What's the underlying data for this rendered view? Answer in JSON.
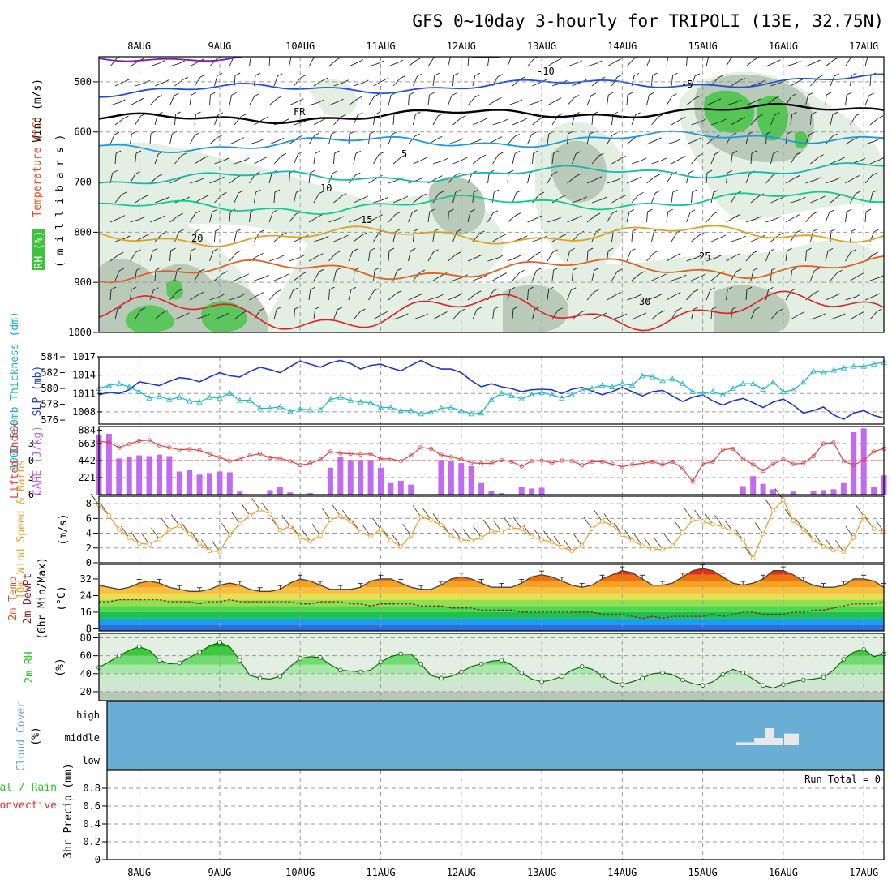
{
  "title": "GFS 0~10day 3-hourly for TRIPOLI (13E, 32.75N)",
  "dates": [
    "8AUG",
    "9AUG",
    "10AUG",
    "11AUG",
    "12AUG",
    "13AUG",
    "14AUG",
    "15AUG",
    "16AUG",
    "17AUG"
  ],
  "colors": {
    "rh_green": "#3cc43c",
    "light_green": "#e3efe3",
    "grey_fill": "#b9cab9",
    "purple": "#7a1fb0",
    "blue": "#2050d8",
    "sky": "#1f9ad8",
    "teal": "#14b8b0",
    "sea": "#12c88a",
    "orange": "#e0a020",
    "red_orange": "#e06020",
    "red": "#e02020",
    "slp_blue": "#2038c8",
    "thick_cyan": "#28b8c8",
    "cape_violet": "#c06cf0",
    "li_red": "#e04040",
    "wind_orange": "#f0a030",
    "cloud_blue": "#6aaed6",
    "rh2m_green": "#1fc41f"
  },
  "panels": {
    "profile": {
      "ylabel_rh": "RH (%)",
      "ylabel_temp": "Temperature (°C)",
      "ylabel_wind": "Wind (m/s)",
      "ylabel_mb": "( m i l l i b a r s )",
      "yticks": [
        "500",
        "600",
        "700",
        "800",
        "900",
        "1000"
      ],
      "labels": [
        "-10",
        "-5",
        "FR",
        "5",
        "10",
        "15",
        "20",
        "25",
        "30"
      ]
    },
    "slp": {
      "ylabel_thick": "1000-500mb Thickness (dm)",
      "ylabel_slp": "SLP (mb)",
      "thick_ticks": [
        "584",
        "582",
        "580",
        "578",
        "576"
      ],
      "slp_ticks": [
        "1017",
        "1014",
        "1011",
        "1008",
        "884"
      ]
    },
    "cape": {
      "ylabel_li": "Lifted Index",
      "ylabel_cape": "CAPE (J/kg)",
      "li_ticks": [
        "-3",
        "0",
        "3",
        "6"
      ],
      "cape_ticks": [
        "663",
        "442",
        "221"
      ]
    },
    "wind10": {
      "ylabel": "10m Wind Speed & Barbs",
      "unit": "(m/s)",
      "ticks": [
        "8",
        "6",
        "4",
        "2",
        "0"
      ]
    },
    "temp2m": {
      "ylabel1": "2m Temp",
      "ylabel2": "2m DewPt",
      "ylabel3": "(6hr Min/Max)",
      "unit": "(°C)",
      "ticks": [
        "32",
        "24",
        "16",
        "8"
      ]
    },
    "rh2m": {
      "ylabel": "2m RH",
      "unit": "(%)",
      "ticks": [
        "80",
        "60",
        "40",
        "20"
      ]
    },
    "cloud": {
      "ylabel": "Cloud Cover",
      "unit": "(%)",
      "levels": [
        "high",
        "middle",
        "low"
      ]
    },
    "precip": {
      "ylabel1": "Total / Rain",
      "ylabel2": "Convective",
      "ylabel3": "3hr Precip (mm)",
      "ticks": [
        "0.8",
        "0.6",
        "0.4",
        "0.2",
        "0"
      ],
      "run_total": "Run Total = 0"
    }
  },
  "chart_data": [
    {
      "type": "line",
      "name_panel": "SLP & 1000-500mb thickness",
      "x_unit": "days from 7AUG 12Z (3-hourly)",
      "x": [
        0.0,
        0.125,
        0.25,
        0.375,
        0.5,
        0.625,
        0.75,
        0.875,
        1.0,
        1.125,
        1.25,
        1.375,
        1.5,
        1.625,
        1.75,
        1.875,
        2.0,
        2.125,
        2.25,
        2.375,
        2.5,
        2.625,
        2.75,
        2.875,
        3.0,
        3.125,
        3.25,
        3.375,
        3.5,
        3.625,
        3.75,
        3.875,
        4.0,
        4.125,
        4.25,
        4.375,
        4.5,
        4.625,
        4.75,
        4.875,
        5.0,
        5.125,
        5.25,
        5.375,
        5.5,
        5.625,
        5.75,
        5.875,
        6.0,
        6.125,
        6.25,
        6.375,
        6.5,
        6.625,
        6.75,
        6.875,
        7.0,
        7.125,
        7.25,
        7.375,
        7.5,
        7.625,
        7.75,
        7.875,
        8.0,
        8.125,
        8.25,
        8.375,
        8.5,
        8.625,
        8.75,
        8.875,
        9.0,
        9.125,
        9.25,
        9.375,
        9.5,
        9.625,
        9.75
      ],
      "series": [
        {
          "name": "SLP (mb)",
          "values": [
            1010.8,
            1011.2,
            1011.0,
            1011.6,
            1012.9,
            1012.6,
            1012.3,
            1013.0,
            1013.6,
            1013.4,
            1012.9,
            1013.7,
            1014.4,
            1013.9,
            1013.7,
            1014.6,
            1015.3,
            1014.9,
            1014.4,
            1015.4,
            1016.3,
            1015.8,
            1015.3,
            1016.0,
            1016.4,
            1015.9,
            1015.0,
            1015.6,
            1015.8,
            1015.2,
            1014.7,
            1015.6,
            1016.4,
            1015.6,
            1015.0,
            1015.0,
            1014.4,
            1013.1,
            1012.1,
            1012.6,
            1012.1,
            1011.8,
            1011.3,
            1011.6,
            1011.7,
            1011.6,
            1011.0,
            1011.7,
            1012.0,
            1011.4,
            1010.8,
            1011.3,
            1012.0,
            1011.3,
            1010.6,
            1011.3,
            1011.5,
            1010.6,
            1009.7,
            1010.4,
            1010.8,
            1009.8,
            1009.1,
            1009.8,
            1010.2,
            1009.5,
            1008.7,
            1009.6,
            1010.1,
            1009.1,
            1007.8,
            1008.2,
            1008.8,
            1007.5,
            1006.8,
            1007.8,
            1008.2,
            1007.4,
            1007.0
          ]
        },
        {
          "name": "1000-500mb Thickness (dm)",
          "values": [
            580.0,
            580.4,
            580.6,
            580.2,
            579.6,
            578.8,
            579.0,
            578.6,
            578.9,
            578.4,
            578.3,
            578.9,
            578.8,
            579.4,
            578.5,
            578.5,
            577.5,
            577.5,
            577.7,
            577.1,
            577.4,
            577.3,
            577.3,
            578.6,
            578.9,
            578.5,
            578.3,
            578.2,
            577.6,
            577.6,
            577.2,
            577.2,
            576.8,
            577.0,
            577.5,
            577.6,
            577.2,
            576.8,
            576.9,
            578.6,
            579.4,
            579.1,
            578.7,
            579.2,
            579.5,
            579.2,
            578.8,
            579.2,
            579.8,
            580.0,
            580.4,
            580.2,
            580.6,
            580.4,
            581.6,
            581.5,
            581.0,
            581.2,
            580.6,
            579.6,
            579.4,
            579.6,
            579.2,
            580.0,
            580.6,
            580.6,
            579.9,
            580.8,
            579.6,
            579.8,
            580.8,
            582.2,
            582.0,
            582.3,
            582.6,
            582.8,
            582.8,
            583.1,
            583.3
          ]
        }
      ]
    },
    {
      "type": "bar",
      "name_panel": "CAPE & Lifted Index",
      "x_unit": "days from 7AUG 12Z (3-hourly)",
      "series": [
        {
          "name": "CAPE (J/kg)",
          "values": [
            780,
            790,
            470,
            490,
            510,
            500,
            520,
            500,
            300,
            320,
            260,
            280,
            300,
            290,
            40,
            0,
            0,
            60,
            100,
            30,
            0,
            20,
            0,
            350,
            490,
            450,
            450,
            450,
            350,
            150,
            180,
            130,
            0,
            0,
            450,
            430,
            410,
            370,
            150,
            50,
            20,
            0,
            100,
            80,
            90,
            0,
            0,
            0,
            0,
            0,
            0,
            0,
            0,
            0,
            0,
            0,
            0,
            0,
            0,
            0,
            0,
            0,
            0,
            0,
            110,
            240,
            140,
            70,
            0,
            40,
            0,
            50,
            60,
            70,
            150,
            810,
            860,
            100,
            250
          ]
        },
        {
          "name": "Lifted Index",
          "values": [
            -3.4,
            -3.2,
            -2.3,
            -2.9,
            -3.5,
            -3.6,
            -2.7,
            -2.3,
            -1.9,
            -2.0,
            -1.8,
            -1.1,
            -0.6,
            0.1,
            -0.3,
            -0.9,
            -1.2,
            -0.5,
            -0.4,
            0.1,
            0.8,
            0.5,
            -0.2,
            -1.6,
            -1.3,
            -1.2,
            -1.1,
            -1.2,
            -0.3,
            -0.3,
            0.1,
            -0.9,
            -2.3,
            -2.1,
            -1.0,
            -0.7,
            -0.2,
            0.4,
            0.5,
            0.5,
            -0.1,
            0.2,
            1.0,
            0.1,
            0.0,
            0.4,
            0.0,
            0.1,
            0.8,
            0.2,
            0.2,
            0.6,
            1.1,
            0.7,
            0.5,
            0.2,
            0.7,
            0.2,
            1.4,
            3.7,
            0.6,
            0.2,
            -1.9,
            -2.1,
            -0.3,
            0.7,
            1.8,
            0.6,
            -0.2,
            0.6,
            0.5,
            -0.8,
            -3.0,
            -3.2,
            0.1,
            0.8,
            -0.1,
            -1.6,
            -2.1
          ]
        }
      ],
      "ylim_cape": [
        0,
        884
      ],
      "ylim_li": [
        6,
        -6
      ]
    },
    {
      "type": "line",
      "name_panel": "10m Wind Speed",
      "ylabel": "(m/s)",
      "ylim": [
        0,
        9
      ],
      "values": [
        7.8,
        6.4,
        4.5,
        3.4,
        2.6,
        2.5,
        3.2,
        4.5,
        5.0,
        3.9,
        2.6,
        1.6,
        1.5,
        3.8,
        5.3,
        6.4,
        7.2,
        6.6,
        4.4,
        4.9,
        3.4,
        2.9,
        3.7,
        5.8,
        6.3,
        5.6,
        4.1,
        3.6,
        4.5,
        3.0,
        2.2,
        3.7,
        6.2,
        5.8,
        5.1,
        3.6,
        3.1,
        3.0,
        3.4,
        4.3,
        4.2,
        4.7,
        4.6,
        3.5,
        3.1,
        2.8,
        2.1,
        1.6,
        2.3,
        4.6,
        5.6,
        5.1,
        3.8,
        3.0,
        2.3,
        1.8,
        1.8,
        2.3,
        4.1,
        5.8,
        5.6,
        5.2,
        4.9,
        4.2,
        3.1,
        0.6,
        3.9,
        7.1,
        8.5,
        5.7,
        4.5,
        3.1,
        2.2,
        1.7,
        1.5,
        3.4,
        6.3,
        4.6,
        4.2
      ]
    },
    {
      "type": "area",
      "name_panel": "2m Temp / DewPt",
      "ylabel": "(°C)",
      "ylim": [
        7,
        39
      ],
      "series": [
        {
          "name": "2m Temp",
          "values": [
            29,
            28,
            27,
            28,
            30,
            31,
            30,
            28,
            27,
            26,
            26,
            27,
            29,
            30,
            29,
            27,
            26,
            26,
            27,
            30,
            32,
            31,
            29,
            27,
            27,
            27,
            28,
            31,
            32,
            32,
            30,
            28,
            27,
            27,
            29,
            32,
            33,
            32,
            30,
            28,
            28,
            28,
            30,
            33,
            34,
            33,
            31,
            29,
            28,
            29,
            32,
            34,
            36,
            35,
            32,
            29,
            29,
            30,
            33,
            36,
            37,
            36,
            33,
            30,
            29,
            30,
            32,
            36,
            36,
            34,
            31,
            29,
            28,
            28,
            29,
            32,
            32,
            31,
            28
          ]
        },
        {
          "name": "2m DewPt",
          "values": [
            21,
            21,
            22,
            22,
            22,
            22,
            22,
            21,
            21,
            21,
            20,
            21,
            21,
            22,
            21,
            21,
            21,
            21,
            21,
            21,
            20,
            20,
            21,
            21,
            21,
            20,
            20,
            19,
            20,
            20,
            20,
            20,
            19,
            19,
            19,
            18,
            18,
            18,
            17,
            17,
            17,
            17,
            16,
            16,
            16,
            16,
            16,
            16,
            16,
            16,
            15,
            15,
            15,
            14,
            13,
            14,
            13,
            14,
            14,
            14,
            14,
            15,
            14,
            15,
            16,
            16,
            15,
            15,
            15,
            16,
            16,
            17,
            17,
            18,
            19,
            20,
            20,
            20,
            21
          ]
        }
      ]
    },
    {
      "type": "area",
      "name_panel": "2m RH",
      "ylabel": "(%)",
      "ylim": [
        10,
        85
      ],
      "values": [
        47,
        53,
        60,
        66,
        70,
        66,
        55,
        51,
        52,
        58,
        64,
        71,
        75,
        70,
        55,
        38,
        35,
        34,
        37,
        48,
        57,
        59,
        58,
        50,
        44,
        43,
        42,
        44,
        53,
        59,
        62,
        62,
        51,
        38,
        35,
        37,
        42,
        48,
        51,
        54,
        55,
        50,
        41,
        34,
        31,
        33,
        37,
        44,
        48,
        45,
        38,
        31,
        28,
        31,
        35,
        40,
        41,
        39,
        33,
        29,
        27,
        31,
        39,
        45,
        41,
        34,
        27,
        24,
        28,
        31,
        33,
        34,
        36,
        44,
        56,
        64,
        67,
        59,
        62
      ]
    },
    {
      "type": "bar",
      "name_panel": "Cloud Cover",
      "ylabel": "(%)",
      "levels": [
        "high",
        "middle",
        "low"
      ],
      "events": [
        {
          "day": 8.0,
          "level": "middle",
          "value": 15
        },
        {
          "day": 8.3,
          "level": "middle",
          "value": 10
        },
        {
          "day": 8.6,
          "level": "middle",
          "value": 60
        }
      ]
    },
    {
      "type": "bar",
      "name_panel": "3hr Precip",
      "ylabel": "3hr Precip (mm)",
      "ylim": [
        0,
        1
      ],
      "values": []
    }
  ]
}
